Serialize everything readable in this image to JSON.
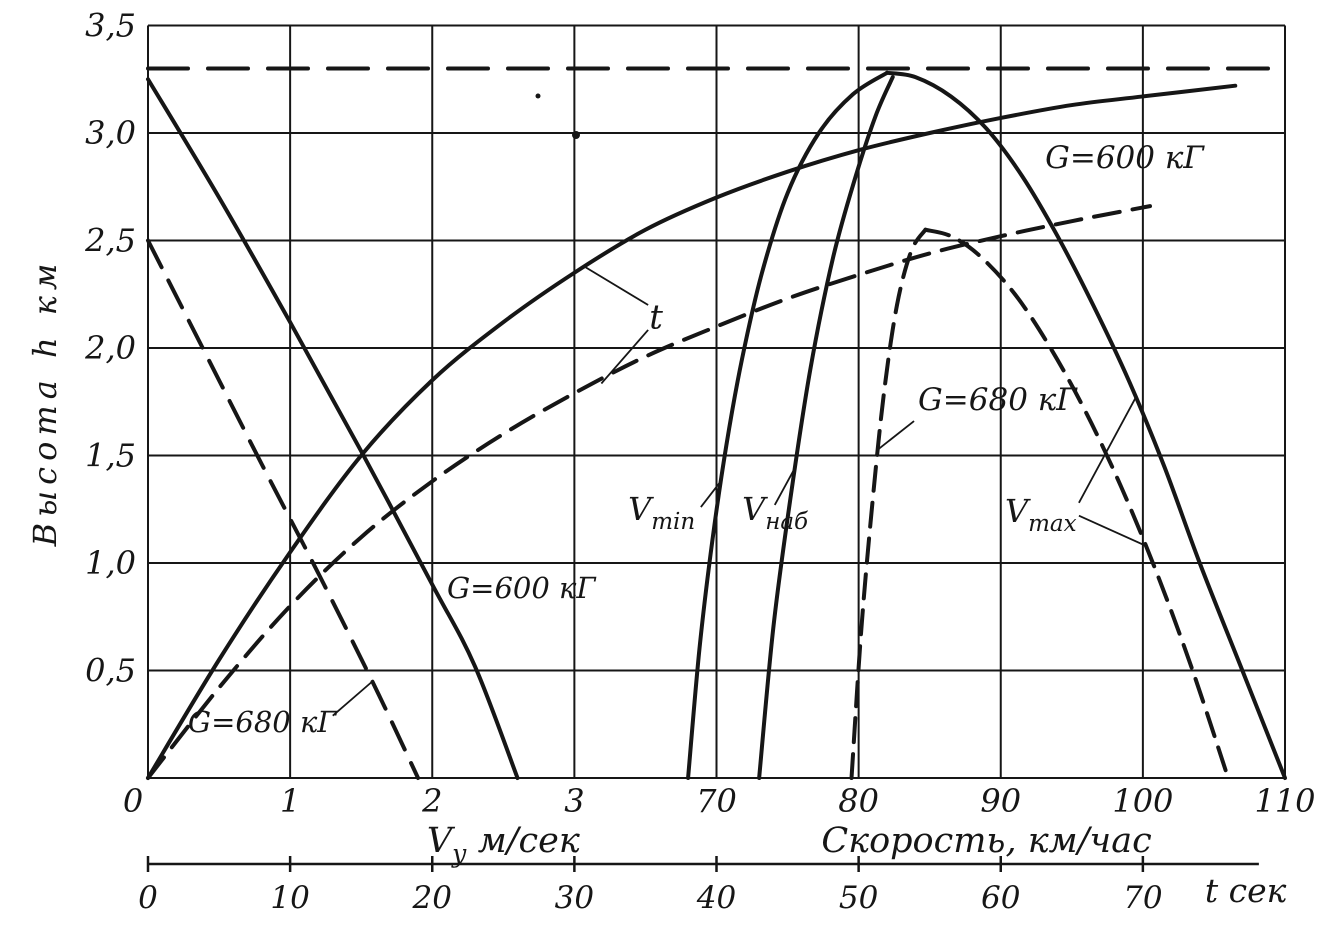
{
  "page": {
    "bg": "#ffffff",
    "ink": "#161616"
  },
  "chart_data": {
    "type": "line",
    "title": "",
    "ylabel": "Высота h км",
    "y_axis": {
      "min": 0,
      "max": 3.5,
      "tick_values": [
        3.5,
        3.0,
        2.5,
        2.0,
        1.5,
        1.0,
        0.5
      ],
      "tick_labels": [
        "3,5",
        "3,0",
        "2,5",
        "2,0",
        "1,5",
        "1,0",
        "0,5"
      ]
    },
    "scales": {
      "grid": {
        "u0": 0,
        "value0": 0,
        "per_cell": 1
      },
      "vy": {
        "u0": 0,
        "value0": 0,
        "per_cell": 1
      },
      "speed": {
        "u0": 4,
        "value0": 70,
        "per_cell": 10
      },
      "t": {
        "u0": 0,
        "value0": 0,
        "per_cell": 10
      }
    },
    "x_axes": [
      {
        "id": "vy",
        "caption": "Vу м/сек",
        "caption_parts": [
          {
            "t": "V"
          },
          {
            "t": "у",
            "sub": true
          },
          {
            "t": " м/сек"
          }
        ],
        "caption_u": 2.5,
        "tick_values": [
          0,
          1,
          2,
          3
        ],
        "tick_labels": [
          "0",
          "1",
          "2",
          "3"
        ]
      },
      {
        "id": "speed",
        "caption": "Скорость, км/час",
        "caption_parts": [
          {
            "t": "Скорость, км/час"
          }
        ],
        "caption_u": 5.9,
        "tick_values": [
          70,
          80,
          90,
          100,
          110
        ],
        "tick_labels": [
          "70",
          "80",
          "90",
          "100",
          "110"
        ]
      }
    ],
    "t_axis": {
      "id": "t",
      "caption": "t сек",
      "caption_parts": [
        {
          "t": "t сек"
        }
      ],
      "tick_values": [
        0,
        10,
        20,
        30,
        40,
        50,
        60,
        70
      ],
      "tick_labels": [
        "0",
        "10",
        "20",
        "30",
        "40",
        "50",
        "60",
        "70"
      ]
    },
    "grid": {
      "u_lines": [
        0,
        1,
        2,
        3,
        4,
        5,
        6,
        7,
        8
      ],
      "h_lines": [
        0,
        0.5,
        1,
        1.5,
        2,
        2.5,
        3,
        3.5
      ],
      "h_top": 3.5
    },
    "series": [
      {
        "id": "ceiling-line",
        "axis": "grid",
        "style": "dashed",
        "dash": "40 20",
        "points": [
          [
            0,
            3.3
          ],
          [
            8,
            3.3
          ]
        ]
      },
      {
        "id": "climb-time-g600",
        "axis": "t",
        "style": "solid",
        "points": [
          [
            0,
            0
          ],
          [
            5,
            0.55
          ],
          [
            10,
            1.05
          ],
          [
            15,
            1.5
          ],
          [
            20,
            1.85
          ],
          [
            25,
            2.12
          ],
          [
            30,
            2.35
          ],
          [
            35,
            2.55
          ],
          [
            40,
            2.7
          ],
          [
            45,
            2.82
          ],
          [
            50,
            2.92
          ],
          [
            55,
            3.0
          ],
          [
            60,
            3.07
          ],
          [
            65,
            3.13
          ],
          [
            70,
            3.17
          ],
          [
            76.5,
            3.22
          ]
        ]
      },
      {
        "id": "climb-time-g680",
        "axis": "t",
        "style": "dashed",
        "dash": "26 13",
        "points": [
          [
            0,
            0
          ],
          [
            5,
            0.42
          ],
          [
            10,
            0.8
          ],
          [
            15,
            1.12
          ],
          [
            20,
            1.38
          ],
          [
            25,
            1.6
          ],
          [
            30,
            1.79
          ],
          [
            35,
            1.96
          ],
          [
            40,
            2.1
          ],
          [
            45,
            2.23
          ],
          [
            50,
            2.34
          ],
          [
            55,
            2.44
          ],
          [
            60,
            2.52
          ],
          [
            65,
            2.59
          ],
          [
            70.5,
            2.66
          ]
        ]
      },
      {
        "id": "climb-rate-g600",
        "axis": "vy",
        "style": "solid",
        "points": [
          [
            0,
            3.25
          ],
          [
            0.5,
            2.7
          ],
          [
            1,
            2.12
          ],
          [
            1.5,
            1.52
          ],
          [
            2,
            0.9
          ],
          [
            2.3,
            0.52
          ],
          [
            2.6,
            0
          ]
        ]
      },
      {
        "id": "climb-rate-g680",
        "axis": "vy",
        "style": "dashed",
        "dash": "30 15",
        "points": [
          [
            0,
            2.5
          ],
          [
            0.4,
            1.98
          ],
          [
            0.8,
            1.46
          ],
          [
            1.2,
            0.95
          ],
          [
            1.6,
            0.42
          ],
          [
            1.9,
            0
          ]
        ]
      },
      {
        "id": "v-min-g600",
        "axis": "speed",
        "style": "solid",
        "points": [
          [
            68,
            0
          ],
          [
            68.8,
            0.6
          ],
          [
            69.7,
            1.1
          ],
          [
            70.7,
            1.55
          ],
          [
            71.8,
            1.95
          ],
          [
            73.2,
            2.35
          ],
          [
            75,
            2.72
          ],
          [
            77.2,
            3.0
          ],
          [
            79.6,
            3.18
          ],
          [
            82,
            3.28
          ]
        ]
      },
      {
        "id": "v-nab-g600",
        "axis": "speed",
        "style": "solid",
        "points": [
          [
            73,
            0
          ],
          [
            74,
            0.7
          ],
          [
            75.2,
            1.3
          ],
          [
            76.6,
            1.9
          ],
          [
            78.2,
            2.42
          ],
          [
            79.8,
            2.8
          ],
          [
            81.2,
            3.08
          ],
          [
            82.4,
            3.26
          ]
        ]
      },
      {
        "id": "v-max-g600",
        "axis": "speed",
        "style": "solid",
        "points": [
          [
            82,
            3.28
          ],
          [
            84,
            3.26
          ],
          [
            86.5,
            3.17
          ],
          [
            89,
            3.02
          ],
          [
            91.5,
            2.8
          ],
          [
            94,
            2.52
          ],
          [
            96.5,
            2.2
          ],
          [
            99,
            1.85
          ],
          [
            101.5,
            1.45
          ],
          [
            104,
            1.0
          ],
          [
            107,
            0.5
          ],
          [
            110,
            0
          ]
        ]
      },
      {
        "id": "v-min-g680",
        "axis": "speed",
        "style": "dashed",
        "dash": "24 12",
        "points": [
          [
            79.5,
            0
          ],
          [
            80.2,
            0.7
          ],
          [
            81,
            1.3
          ],
          [
            81.8,
            1.8
          ],
          [
            82.7,
            2.2
          ],
          [
            83.7,
            2.45
          ],
          [
            84.7,
            2.55
          ]
        ]
      },
      {
        "id": "v-max-g680",
        "axis": "speed",
        "style": "dashed",
        "dash": "24 12",
        "points": [
          [
            84.7,
            2.55
          ],
          [
            86.5,
            2.52
          ],
          [
            88.5,
            2.43
          ],
          [
            91,
            2.25
          ],
          [
            93.5,
            2.0
          ],
          [
            96,
            1.7
          ],
          [
            98.5,
            1.35
          ],
          [
            101,
            0.95
          ],
          [
            103.5,
            0.5
          ],
          [
            106,
            0
          ]
        ]
      }
    ],
    "annotations": [
      {
        "id": "time-curves-label",
        "parts": [
          {
            "t": "t"
          }
        ],
        "u": 3.575,
        "h": 2.09,
        "size": 34,
        "anchor": "middle",
        "leaders": [
          [
            3.519,
            2.2,
            3.08,
            2.375
          ],
          [
            3.519,
            2.084,
            3.19,
            1.835
          ]
        ]
      },
      {
        "id": "envelope-g600-label",
        "parts": [
          {
            "t": "G=600 кГ"
          }
        ],
        "u": 6.312,
        "h": 2.837,
        "size": 31,
        "anchor": "start",
        "leaders": []
      },
      {
        "id": "envelope-g680-label",
        "parts": [
          {
            "t": "G=680 кГ"
          }
        ],
        "u": 5.418,
        "h": 1.712,
        "size": 31,
        "anchor": "start",
        "leaders": [
          [
            5.39,
            1.66,
            5.14,
            1.53
          ]
        ]
      },
      {
        "id": "v-min-label",
        "parts": [
          {
            "t": "V"
          },
          {
            "t": "min",
            "sub": true
          }
        ],
        "u": 3.378,
        "h": 1.2,
        "size": 32,
        "anchor": "start",
        "leaders": [
          [
            3.89,
            1.26,
            4.03,
            1.38
          ]
        ]
      },
      {
        "id": "v-nab-label",
        "parts": [
          {
            "t": "V"
          },
          {
            "t": "наб",
            "sub": true
          }
        ],
        "u": 4.18,
        "h": 1.2,
        "size": 32,
        "anchor": "start",
        "leaders": [
          [
            4.41,
            1.27,
            4.55,
            1.44
          ]
        ]
      },
      {
        "id": "v-max-label",
        "parts": [
          {
            "t": "V"
          },
          {
            "t": "max",
            "sub": true
          }
        ],
        "u": 6.03,
        "h": 1.19,
        "size": 32,
        "anchor": "start",
        "leaders": [
          [
            6.55,
            1.28,
            6.95,
            1.77
          ],
          [
            6.55,
            1.22,
            7.02,
            1.08
          ]
        ]
      },
      {
        "id": "climb-rate-g600-label",
        "parts": [
          {
            "t": "G=600 кГ"
          }
        ],
        "u": 2.104,
        "h": 0.837,
        "size": 29,
        "anchor": "start",
        "leaders": []
      },
      {
        "id": "climb-rate-g680-label",
        "parts": [
          {
            "t": "G=680 кГ"
          }
        ],
        "u": 0.281,
        "h": 0.214,
        "size": 29,
        "anchor": "start",
        "leaders": [
          [
            1.3,
            0.29,
            1.58,
            0.45
          ]
        ]
      }
    ],
    "artifacts": [
      {
        "x": 538,
        "y": 96,
        "r": 2.5
      },
      {
        "x": 576,
        "y": 135,
        "r": 4
      }
    ]
  }
}
